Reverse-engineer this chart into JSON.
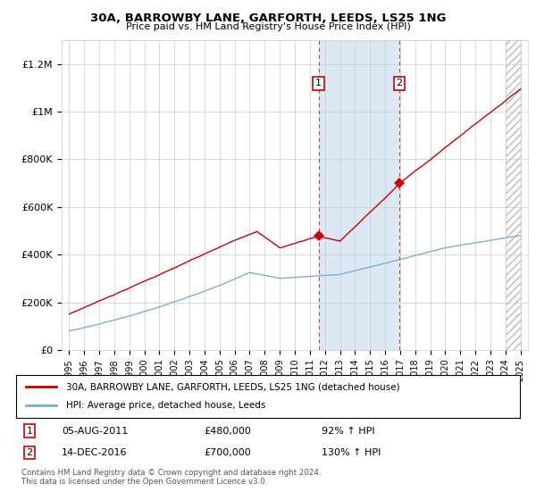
{
  "title": "30A, BARROWBY LANE, GARFORTH, LEEDS, LS25 1NG",
  "subtitle": "Price paid vs. HM Land Registry's House Price Index (HPI)",
  "ylim": [
    0,
    1300000
  ],
  "yticks": [
    0,
    200000,
    400000,
    600000,
    800000,
    1000000,
    1200000
  ],
  "ytick_labels": [
    "£0",
    "£200K",
    "£400K",
    "£600K",
    "£800K",
    "£1M",
    "£1.2M"
  ],
  "xlim_start": 1994.5,
  "xlim_end": 2025.5,
  "sale1_year": 2011.58,
  "sale1_price": 480000,
  "sale1_label": "1",
  "sale1_date": "05-AUG-2011",
  "sale1_pct": "92%",
  "sale2_year": 2016.95,
  "sale2_price": 700000,
  "sale2_label": "2",
  "sale2_date": "14-DEC-2016",
  "sale2_pct": "130%",
  "legend_line1": "30A, BARROWBY LANE, GARFORTH, LEEDS, LS25 1NG (detached house)",
  "legend_line2": "HPI: Average price, detached house, Leeds",
  "note": "Contains HM Land Registry data © Crown copyright and database right 2024.\nThis data is licensed under the Open Government Licence v3.0.",
  "line_color_red": "#cc0000",
  "line_color_blue": "#7aafd4",
  "shade_color": "#dce9f5",
  "marker_box_color": "#cc0000",
  "grid_color": "#cccccc",
  "background_color": "#ffffff",
  "hatch_color": "#bbbbbb"
}
